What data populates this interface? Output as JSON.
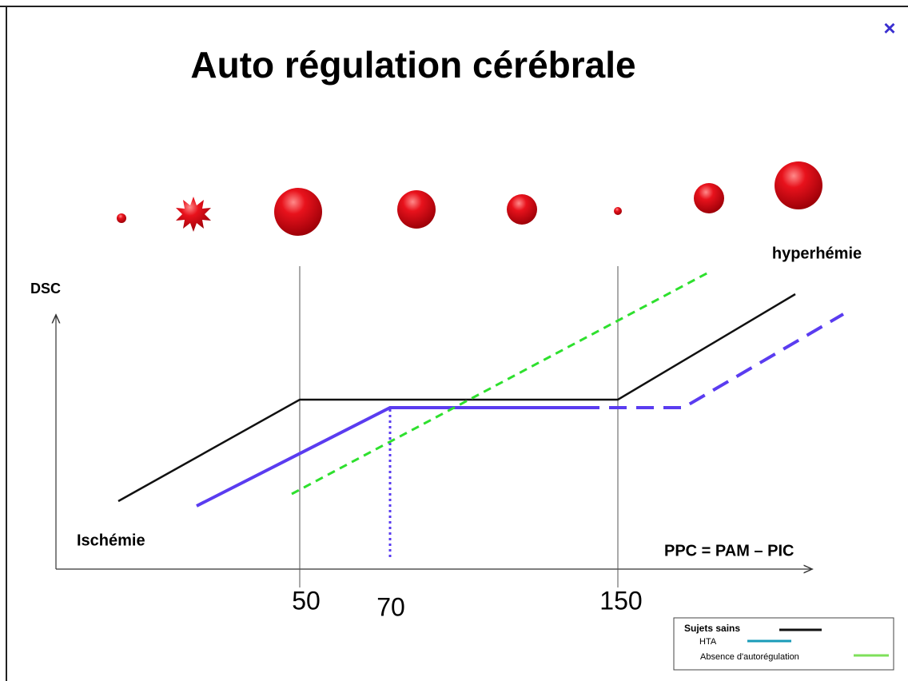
{
  "close_button": "×",
  "title": "Auto régulation cérébrale",
  "labels": {
    "y_axis": "DSC",
    "upper_right": "hyperhémie",
    "lower_left": "Ischémie",
    "x_axis": "PPC = PAM – PIC"
  },
  "x_markers": [
    "50",
    "70",
    "150"
  ],
  "legend": [
    "Sujets sains",
    "HTA",
    "Absence d'autorégulation"
  ]
}
